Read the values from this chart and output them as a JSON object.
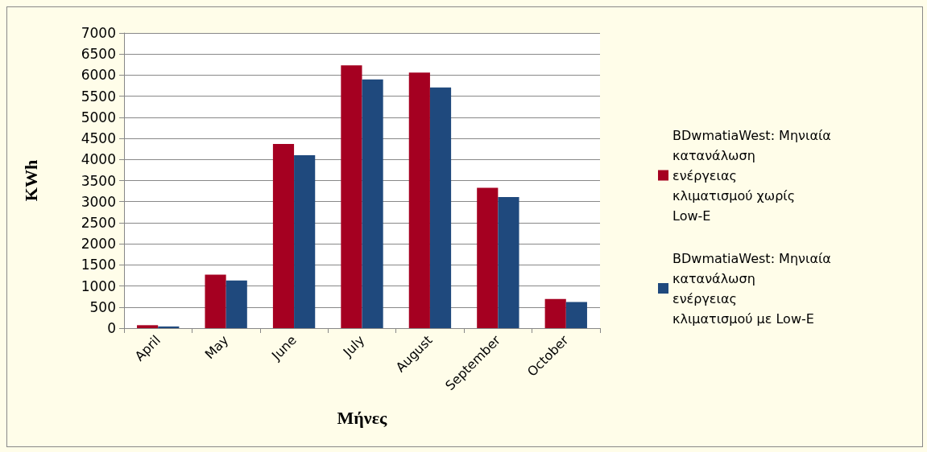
{
  "chart_data": {
    "type": "bar",
    "xlabel": "Μήνες",
    "ylabel": "KWh",
    "categories": [
      "April",
      "May",
      "June",
      "July",
      "August",
      "September",
      "October"
    ],
    "series": [
      {
        "name": "BDwmatiaWest: Μηνιαία κατανάλωση ενέργειας κλιματισμού χωρίς Low-E",
        "color": "#a50021",
        "values": [
          70,
          1270,
          4370,
          6230,
          6060,
          3330,
          690
        ]
      },
      {
        "name": "BDwmatiaWest: Μηνιαία κατανάλωση ενέργειας κλιματισμού με Low-E",
        "color": "#1f497d",
        "values": [
          40,
          1130,
          4100,
          5900,
          5710,
          3110,
          620
        ]
      }
    ],
    "ylim": [
      0,
      7000
    ],
    "yticks": [
      0,
      500,
      1000,
      1500,
      2000,
      2500,
      3000,
      3500,
      4000,
      4500,
      5000,
      5500,
      6000,
      6500,
      7000
    ],
    "grid": "y",
    "legend": "right"
  }
}
